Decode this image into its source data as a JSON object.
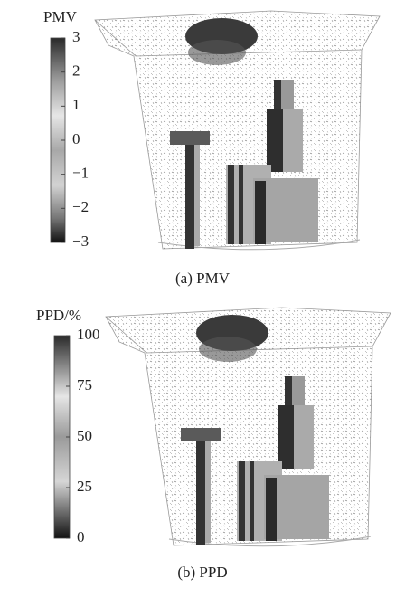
{
  "panels": [
    {
      "colorbar": {
        "title": "PMV",
        "range": [
          -3,
          3
        ],
        "ticks": [
          3,
          2,
          1,
          0,
          {
            "value": -1,
            "label": "−1"
          },
          {
            "value": -2,
            "label": "−2"
          },
          {
            "value": -3,
            "label": "−3"
          }
        ]
      },
      "caption": "(a) PMV"
    },
    {
      "colorbar": {
        "title": "PPD/%",
        "range": [
          0,
          100
        ],
        "ticks": [
          100,
          75,
          50,
          25,
          0
        ]
      },
      "caption": "(b) PPD"
    }
  ]
}
